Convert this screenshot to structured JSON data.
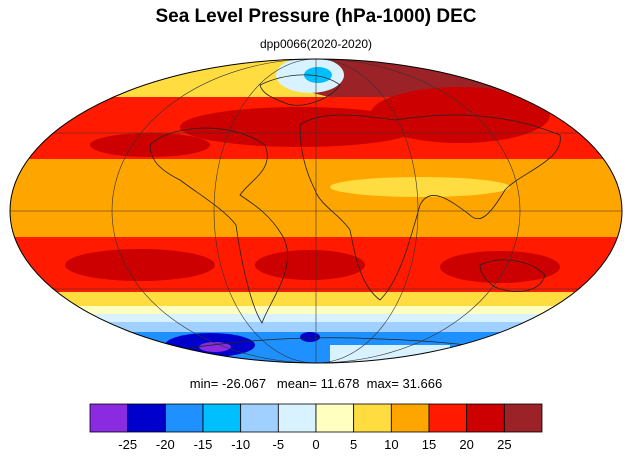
{
  "title": "Sea Level Pressure (hPa-1000) DEC",
  "subtitle": "dpp0066(2020-2020)",
  "stats": {
    "min_label": "min=",
    "min_value": "-26.067",
    "mean_label": "mean=",
    "mean_value": "11.678",
    "max_label": "max=",
    "max_value": "31.666"
  },
  "colorbar": {
    "colors": [
      "#8a2be2",
      "#0000cd",
      "#1e90ff",
      "#00bfff",
      "#9fd0ff",
      "#d8f2ff",
      "#ffffc0",
      "#ffdc40",
      "#ffa500",
      "#ff1a00",
      "#cc0000",
      "#9b2226"
    ],
    "tick_labels": [
      "-25",
      "-20",
      "-15",
      "-10",
      "-5",
      "0",
      "5",
      "10",
      "15",
      "20",
      "25"
    ]
  },
  "map": {
    "projection": "Mollweide",
    "variable": "sea level pressure anomaly",
    "bands": [
      {
        "region": "Arctic",
        "level": "mixed, low over Greenland/Norwegian Sea"
      },
      {
        "region": "Northern mid-latitudes",
        "level": "20-25"
      },
      {
        "region": "Tropics",
        "level": "10-15"
      },
      {
        "region": "Southern subtropics",
        "level": "20-25"
      },
      {
        "region": "Southern Ocean",
        "level": "-5 to -20"
      },
      {
        "region": "Antarctic coast",
        "level": "-25"
      }
    ]
  }
}
